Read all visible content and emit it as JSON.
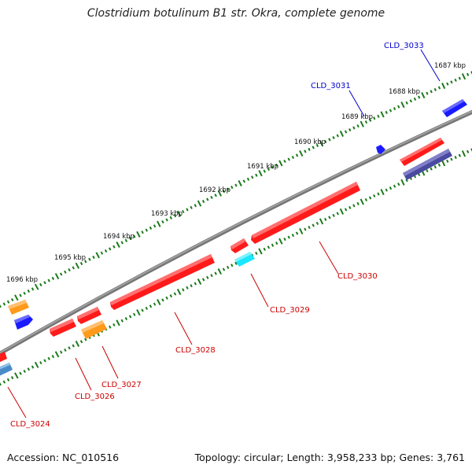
{
  "title": "Clostridium botulinum B1 str. Okra, complete genome",
  "footer": {
    "accession": "Accession: NC_010516",
    "summary": "Topology: circular; Length: 3,958,233 bp; Genes: 3,761"
  },
  "scale_labels": [
    "1687 kbp",
    "1688 kbp",
    "1689 kbp",
    "1690 kbp",
    "1691 kbp",
    "1692 kbp",
    "1693 kbp",
    "1694 kbp",
    "1695 kbp",
    "1696 kbp"
  ],
  "gene_labels": {
    "forward": [
      "CLD_3031",
      "CLD_3033"
    ],
    "reverse": [
      "CLD_3024",
      "CLD_3026",
      "CLD_3027",
      "CLD_3028",
      "CLD_3029",
      "CLD_3030"
    ]
  },
  "colors": {
    "backbone": "#808080",
    "ticks": "#1a7a1a",
    "forward_label": "#0000cc",
    "reverse_label": "#cc0000",
    "gene_red": "#ff1a1a",
    "gene_blue": "#1a1aff",
    "gene_orange": "#ff9a1a",
    "gene_cyan": "#1ae6ff",
    "gene_slate": "#4a4aa0",
    "gene_steel": "#4a8ac8"
  }
}
